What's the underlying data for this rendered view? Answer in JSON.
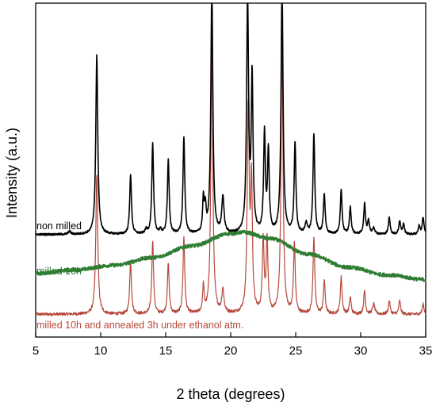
{
  "chart_data": {
    "type": "line",
    "xlabel": "2 theta (degrees)",
    "ylabel": "Intensity (a.u.)",
    "xlim": [
      5,
      35
    ],
    "ylim": [
      0,
      100
    ],
    "xticks": [
      5,
      10,
      15,
      20,
      25,
      30,
      35
    ],
    "grid": false,
    "series": [
      {
        "name": "non milled",
        "color": "#000000",
        "baseline": 30.7,
        "peaks": [
          [
            7.6,
            1.0,
            0.1
          ],
          [
            9.7,
            54.0,
            0.09
          ],
          [
            12.3,
            18.0,
            0.08
          ],
          [
            13.5,
            1.2,
            0.1
          ],
          [
            14.0,
            27.0,
            0.08
          ],
          [
            14.6,
            1.0,
            0.1
          ],
          [
            15.2,
            22.0,
            0.08
          ],
          [
            16.4,
            29.0,
            0.08
          ],
          [
            17.9,
            10.0,
            0.07
          ],
          [
            18.05,
            7.0,
            0.07
          ],
          [
            18.55,
            75.0,
            0.09
          ],
          [
            19.4,
            11.0,
            0.1
          ],
          [
            21.3,
            70.0,
            0.09
          ],
          [
            21.65,
            46.0,
            0.08
          ],
          [
            22.6,
            30.0,
            0.08
          ],
          [
            22.9,
            24.0,
            0.08
          ],
          [
            23.95,
            75.0,
            0.09
          ],
          [
            24.95,
            27.0,
            0.08
          ],
          [
            25.8,
            3.0,
            0.1
          ],
          [
            26.4,
            30.0,
            0.08
          ],
          [
            27.2,
            12.0,
            0.08
          ],
          [
            28.5,
            13.0,
            0.08
          ],
          [
            29.2,
            8.0,
            0.08
          ],
          [
            30.3,
            9.0,
            0.08
          ],
          [
            30.6,
            4.0,
            0.08
          ],
          [
            31.0,
            2.0,
            0.1
          ],
          [
            32.2,
            5.0,
            0.08
          ],
          [
            33.0,
            4.0,
            0.08
          ],
          [
            33.3,
            3.0,
            0.08
          ],
          [
            34.5,
            2.5,
            0.08
          ],
          [
            34.8,
            5.0,
            0.08
          ]
        ]
      },
      {
        "name": "milled 10h",
        "color": "#2e7d32",
        "points": [
          [
            5,
            19.0
          ],
          [
            8,
            20.1
          ],
          [
            11,
            21.5
          ],
          [
            14,
            23.8
          ],
          [
            17,
            27.3
          ],
          [
            20,
            31.0
          ],
          [
            21,
            31.4
          ],
          [
            23,
            29.5
          ],
          [
            26,
            24.8
          ],
          [
            29,
            20.9
          ],
          [
            32,
            18.6
          ],
          [
            35,
            17.2
          ]
        ]
      },
      {
        "name": "milled 10h and annealed 3h under ethanol atm.",
        "color": "#b5483a",
        "baseline": 6.8,
        "peaks": [
          [
            9.7,
            42.0,
            0.09
          ],
          [
            12.3,
            16.0,
            0.08
          ],
          [
            14.0,
            22.0,
            0.08
          ],
          [
            15.2,
            15.0,
            0.08
          ],
          [
            16.4,
            23.0,
            0.08
          ],
          [
            17.9,
            8.0,
            0.07
          ],
          [
            18.55,
            81.0,
            0.09
          ],
          [
            19.4,
            7.0,
            0.1
          ],
          [
            21.35,
            61.0,
            0.09
          ],
          [
            21.6,
            38.0,
            0.08
          ],
          [
            22.5,
            22.0,
            0.08
          ],
          [
            22.8,
            22.0,
            0.08
          ],
          [
            23.95,
            82.0,
            0.09
          ],
          [
            24.9,
            21.0,
            0.08
          ],
          [
            26.4,
            23.0,
            0.08
          ],
          [
            27.2,
            10.0,
            0.08
          ],
          [
            28.5,
            11.0,
            0.08
          ],
          [
            29.2,
            5.0,
            0.08
          ],
          [
            30.3,
            7.0,
            0.08
          ],
          [
            31.0,
            3.0,
            0.1
          ],
          [
            32.2,
            4.0,
            0.08
          ],
          [
            33.0,
            4.0,
            0.08
          ],
          [
            34.8,
            3.0,
            0.08
          ]
        ]
      }
    ],
    "labels": {
      "non_milled": "non milled",
      "milled": "milled 10h",
      "annealed": "milled 10h and annealed 3h under ethanol atm."
    }
  }
}
